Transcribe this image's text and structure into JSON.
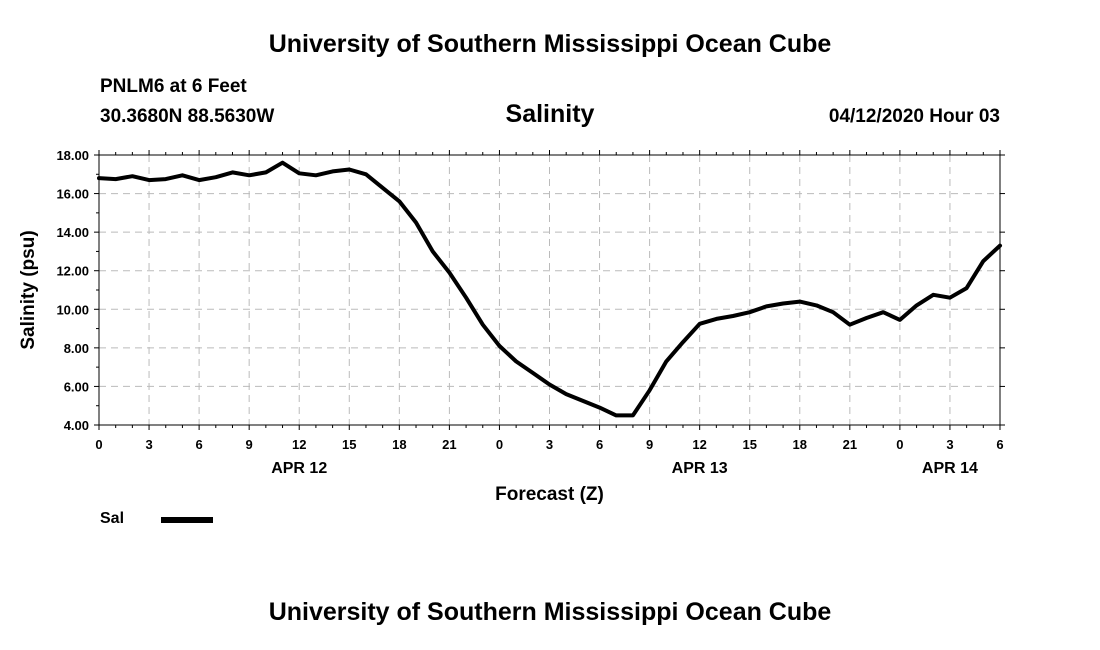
{
  "header": {
    "title": "University of Southern Mississippi Ocean Cube",
    "station": "PNLM6 at 6 Feet",
    "coords": "30.3680N 88.5630W",
    "chart_title": "Salinity",
    "datetime": "04/12/2020 Hour 03"
  },
  "footer": {
    "title": "University of Southern Mississippi Ocean Cube"
  },
  "colors": {
    "line": "#000000",
    "grid": "#bbbbbb"
  },
  "chart_data": {
    "type": "line",
    "title": "Salinity",
    "xlabel": "Forecast (Z)",
    "ylabel": "Salinity (psu)",
    "ylim": [
      4,
      18
    ],
    "xlim_hours_from_apr12_00z": [
      0,
      54
    ],
    "grid": true,
    "y_ticks": [
      "4.00",
      "6.00",
      "8.00",
      "10.00",
      "12.00",
      "14.00",
      "16.00",
      "18.00"
    ],
    "x_tick_labels": [
      "0",
      "3",
      "6",
      "9",
      "12",
      "15",
      "18",
      "21",
      "0",
      "3",
      "6",
      "9",
      "12",
      "15",
      "18",
      "21",
      "0",
      "3",
      "6"
    ],
    "date_labels": [
      {
        "text": "APR 12",
        "hour": 12
      },
      {
        "text": "APR 13",
        "hour": 36
      },
      {
        "text": "APR 14",
        "hour": 51
      }
    ],
    "series": [
      {
        "name": "Sal",
        "x": [
          0,
          1,
          2,
          3,
          4,
          5,
          6,
          7,
          8,
          9,
          10,
          11,
          12,
          13,
          14,
          15,
          16,
          17,
          18,
          19,
          20,
          21,
          22,
          23,
          24,
          25,
          26,
          27,
          28,
          29,
          30,
          31,
          32,
          33,
          34,
          35,
          36,
          37,
          38,
          39,
          40,
          41,
          42,
          43,
          44,
          45,
          46,
          47,
          48,
          49,
          50,
          51,
          52,
          53,
          54
        ],
        "values": [
          16.8,
          16.75,
          16.9,
          16.7,
          16.75,
          16.95,
          16.7,
          16.85,
          17.1,
          16.95,
          17.1,
          17.6,
          17.05,
          16.95,
          17.15,
          17.25,
          17.0,
          16.3,
          15.6,
          14.5,
          13.0,
          11.9,
          10.6,
          9.2,
          8.1,
          7.3,
          6.7,
          6.1,
          5.6,
          5.25,
          4.9,
          4.5,
          4.5,
          5.8,
          7.3,
          8.3,
          9.25,
          9.5,
          9.65,
          9.85,
          10.15,
          10.3,
          10.4,
          10.2,
          9.85,
          9.2,
          9.55,
          9.85,
          9.45,
          10.2,
          10.75,
          10.6,
          11.1,
          12.5,
          13.3
        ]
      }
    ],
    "legend": {
      "entries": [
        {
          "label": "Sal"
        }
      ],
      "placement": "bottom-left"
    }
  }
}
